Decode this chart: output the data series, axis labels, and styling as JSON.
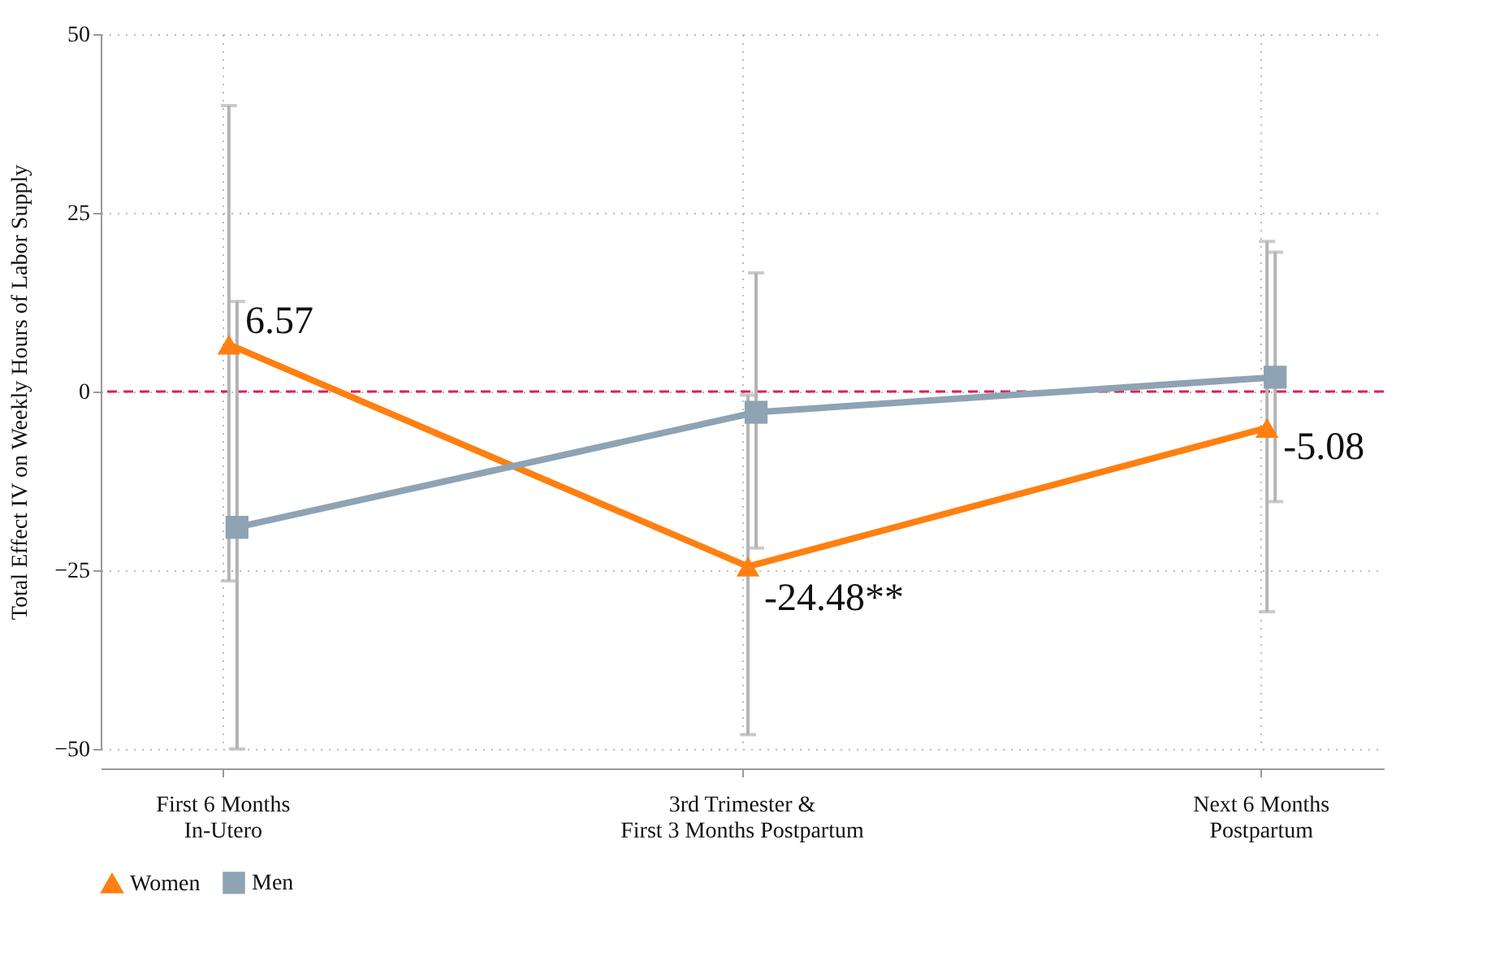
{
  "chart_data": {
    "type": "line",
    "ylabel": "Total Effect IV on Weekly Hours of Labor Supply",
    "categories": [
      "First 6 Months\nIn-Utero",
      "3rd Trimester &\nFirst 3 Months Postpartum",
      "Next 6 Months\nPostpartum"
    ],
    "ylim": [
      -50,
      50
    ],
    "yticks": [
      -50,
      -25,
      0,
      25,
      50
    ],
    "grid": true,
    "legend": "bottom",
    "ref_lines": [
      {
        "axis": "y",
        "value": 0,
        "color": "#d6235a",
        "line_style": "dashed"
      }
    ],
    "series": [
      {
        "name": "Women",
        "color": "#ff8010",
        "marker": "triangle",
        "values": [
          6.57,
          -24.48,
          -5.08
        ],
        "errors": [
          [
            -26.5,
            40
          ],
          [
            -48,
            -0.5
          ],
          [
            -30.8,
            21
          ]
        ],
        "value_labels": [
          "6.57",
          "-24.48**",
          "-5.08"
        ]
      },
      {
        "name": "Men",
        "color": "#8ea3b3",
        "marker": "square",
        "values": [
          -19,
          -2.9,
          2.0
        ],
        "errors": [
          [
            -50,
            12.6
          ],
          [
            -21.9,
            16.6
          ],
          [
            -15.4,
            19.5
          ]
        ]
      }
    ]
  }
}
